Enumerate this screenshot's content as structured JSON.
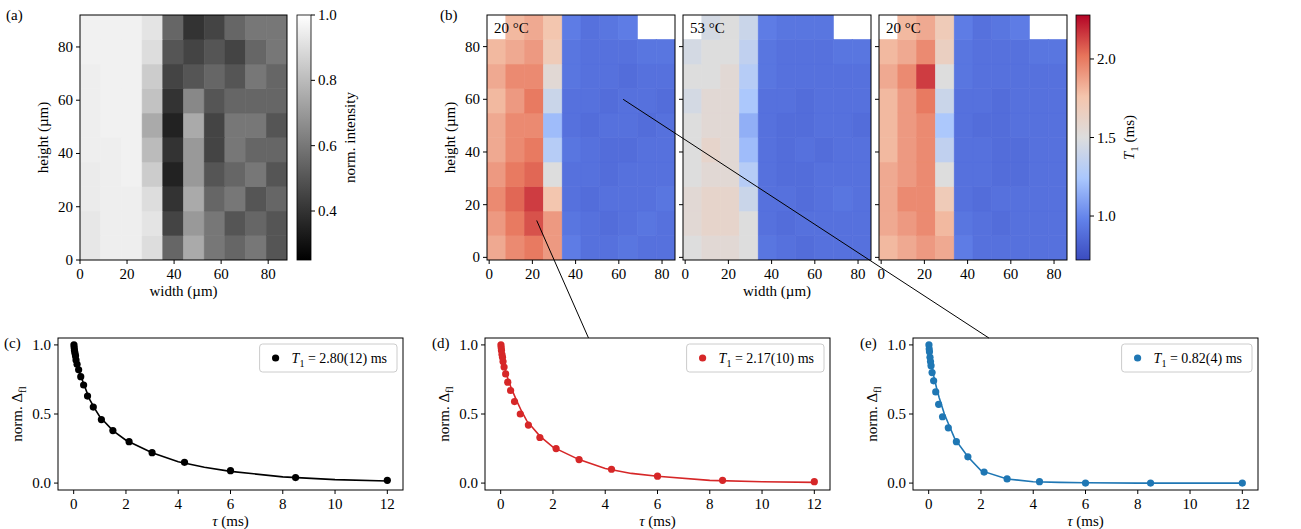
{
  "chart_data": [
    {
      "type": "heatmap",
      "panel_label": "(a)",
      "x_label": "width (µm)",
      "y_label": "height (µm)",
      "xlim": [
        0,
        88
      ],
      "ylim": [
        0,
        92
      ],
      "xticks": [
        0,
        20,
        40,
        60,
        80
      ],
      "yticks": [
        0,
        20,
        40,
        60,
        80
      ],
      "x": [
        4.4,
        13.2,
        22.0,
        30.8,
        39.6,
        48.4,
        57.2,
        66.0,
        74.8,
        83.6
      ],
      "y": [
        4.6,
        13.8,
        23.0,
        32.2,
        41.4,
        50.6,
        59.8,
        69.0,
        78.2,
        87.4
      ],
      "cells": [
        [
          0.93,
          0.95,
          0.95,
          0.9,
          0.55,
          0.75,
          0.6,
          0.55,
          0.6,
          0.5
        ],
        [
          0.93,
          0.95,
          0.95,
          0.92,
          0.45,
          0.7,
          0.6,
          0.5,
          0.55,
          0.5
        ],
        [
          0.94,
          0.95,
          0.95,
          0.9,
          0.4,
          0.75,
          0.55,
          0.6,
          0.5,
          0.55
        ],
        [
          0.94,
          0.95,
          0.96,
          0.85,
          0.35,
          0.7,
          0.5,
          0.55,
          0.6,
          0.5
        ],
        [
          0.95,
          0.95,
          0.96,
          0.8,
          0.4,
          0.7,
          0.45,
          0.6,
          0.55,
          0.55
        ],
        [
          0.95,
          0.96,
          0.96,
          0.75,
          0.35,
          0.75,
          0.45,
          0.6,
          0.6,
          0.5
        ],
        [
          0.95,
          0.96,
          0.96,
          0.82,
          0.4,
          0.65,
          0.5,
          0.55,
          0.55,
          0.55
        ],
        [
          0.95,
          0.96,
          0.96,
          0.85,
          0.45,
          0.5,
          0.55,
          0.5,
          0.6,
          0.55
        ],
        [
          0.96,
          0.96,
          0.96,
          0.9,
          0.5,
          0.45,
          0.5,
          0.45,
          0.55,
          0.6
        ],
        [
          0.96,
          0.96,
          0.96,
          0.92,
          0.55,
          0.4,
          0.45,
          0.55,
          0.6,
          0.6
        ]
      ],
      "colorbar": {
        "label": "norm. intensity",
        "range": [
          0.25,
          1.0
        ],
        "ticks": [
          0.4,
          0.6,
          0.8,
          {
            "value": 1,
            "label": "1.0"
          }
        ],
        "colors": [
          "#000000",
          "#ffffff"
        ]
      }
    },
    {
      "type": "heatmap",
      "panel_label": "(b)",
      "annotation": "20 °C",
      "y_label": "height (µm)",
      "xlim": [
        -1,
        86
      ],
      "ylim": [
        -1,
        92
      ],
      "xticks": [
        0,
        20,
        40,
        60,
        80
      ],
      "yticks": [
        0,
        20,
        40,
        60,
        80
      ],
      "x": [
        3.35,
        12.05,
        20.75,
        29.45,
        38.15,
        46.85,
        55.55,
        64.25,
        72.95,
        81.65
      ],
      "y": [
        3.65,
        12.95,
        22.25,
        31.55,
        40.85,
        50.15,
        59.45,
        68.75,
        78.05,
        87.35
      ],
      "cells": [
        [
          1.85,
          1.95,
          2.0,
          1.9,
          0.95,
          0.9,
          0.9,
          0.92,
          0.9,
          0.9
        ],
        [
          1.9,
          2.0,
          2.1,
          1.9,
          0.92,
          0.9,
          0.88,
          0.9,
          0.92,
          0.9
        ],
        [
          1.95,
          2.05,
          2.15,
          1.75,
          0.9,
          0.88,
          0.9,
          0.9,
          0.9,
          0.92
        ],
        [
          1.9,
          2.0,
          2.05,
          1.5,
          0.9,
          0.9,
          0.88,
          0.9,
          0.9,
          0.9
        ],
        [
          1.85,
          1.95,
          2.0,
          1.3,
          0.92,
          0.9,
          0.88,
          0.88,
          0.9,
          0.9
        ],
        [
          1.85,
          1.95,
          1.95,
          1.2,
          0.9,
          0.88,
          0.9,
          0.9,
          0.88,
          0.9
        ],
        [
          1.8,
          1.9,
          2.0,
          1.4,
          0.9,
          0.9,
          0.88,
          0.9,
          0.9,
          0.88
        ],
        [
          1.85,
          1.95,
          1.95,
          1.55,
          0.92,
          0.9,
          0.9,
          0.88,
          0.9,
          0.9
        ],
        [
          1.8,
          1.85,
          1.9,
          1.7,
          0.92,
          0.9,
          0.9,
          0.9,
          0.92,
          0.92
        ],
        [
          null,
          1.8,
          1.85,
          1.75,
          0.95,
          0.9,
          0.92,
          0.95,
          null,
          null
        ]
      ]
    },
    {
      "type": "heatmap",
      "annotation": "53 °C",
      "x_label": "width (µm)",
      "tick_labels": "x",
      "xlim": [
        -1,
        86
      ],
      "ylim": [
        -1,
        92
      ],
      "xticks": [
        0,
        20,
        40,
        60,
        80
      ],
      "yticks": [
        0,
        20,
        40,
        60,
        80
      ],
      "x": [
        3.35,
        12.05,
        20.75,
        29.45,
        38.15,
        46.85,
        55.55,
        64.25,
        72.95,
        81.65
      ],
      "y": [
        3.65,
        12.95,
        22.25,
        31.55,
        40.85,
        50.15,
        59.45,
        68.75,
        78.05,
        87.35
      ],
      "cells": [
        [
          1.5,
          1.55,
          1.55,
          1.5,
          0.92,
          0.9,
          0.88,
          0.9,
          0.9,
          0.9
        ],
        [
          1.55,
          1.6,
          1.6,
          1.5,
          0.9,
          0.88,
          0.9,
          0.9,
          0.9,
          0.9
        ],
        [
          1.55,
          1.6,
          1.6,
          1.4,
          0.9,
          0.9,
          0.88,
          0.9,
          0.92,
          0.9
        ],
        [
          1.5,
          1.55,
          1.55,
          1.3,
          0.9,
          0.88,
          0.88,
          0.9,
          0.9,
          0.9
        ],
        [
          1.5,
          1.6,
          1.55,
          1.2,
          0.9,
          0.88,
          0.9,
          0.88,
          0.9,
          0.9
        ],
        [
          1.5,
          1.55,
          1.55,
          1.15,
          0.9,
          0.88,
          0.88,
          0.9,
          0.9,
          0.88
        ],
        [
          1.45,
          1.55,
          1.55,
          1.25,
          0.9,
          0.9,
          0.88,
          0.9,
          0.9,
          0.9
        ],
        [
          1.5,
          1.5,
          1.55,
          1.3,
          0.92,
          0.9,
          0.9,
          0.9,
          0.9,
          0.9
        ],
        [
          1.45,
          1.5,
          1.5,
          1.35,
          0.92,
          0.9,
          0.9,
          0.9,
          0.92,
          0.92
        ],
        [
          null,
          1.45,
          1.5,
          1.4,
          0.95,
          0.92,
          0.92,
          0.92,
          null,
          null
        ]
      ]
    },
    {
      "type": "heatmap",
      "annotation": "20 °C",
      "tick_labels": "x",
      "xlim": [
        -1,
        86
      ],
      "ylim": [
        -1,
        92
      ],
      "xticks": [
        0,
        20,
        40,
        60,
        80
      ],
      "yticks": [
        0,
        20,
        40,
        60,
        80
      ],
      "x": [
        3.35,
        12.05,
        20.75,
        29.45,
        38.15,
        46.85,
        55.55,
        64.25,
        72.95,
        81.65
      ],
      "y": [
        3.65,
        12.95,
        22.25,
        31.55,
        40.85,
        50.15,
        59.45,
        68.75,
        78.05,
        87.35
      ],
      "cells": [
        [
          1.8,
          1.85,
          1.9,
          1.85,
          0.95,
          0.9,
          0.9,
          0.9,
          0.9,
          0.9
        ],
        [
          1.85,
          1.9,
          1.95,
          1.8,
          0.92,
          0.9,
          0.88,
          0.9,
          0.9,
          0.9
        ],
        [
          1.85,
          1.95,
          1.95,
          1.7,
          0.9,
          0.88,
          0.9,
          0.9,
          0.9,
          0.9
        ],
        [
          1.85,
          1.9,
          1.95,
          1.5,
          0.9,
          0.9,
          0.88,
          0.88,
          0.9,
          0.9
        ],
        [
          1.8,
          1.9,
          1.95,
          1.35,
          0.9,
          0.9,
          0.88,
          0.88,
          0.9,
          0.9
        ],
        [
          1.8,
          1.9,
          1.95,
          1.25,
          0.9,
          0.88,
          0.88,
          0.9,
          0.9,
          0.9
        ],
        [
          1.8,
          1.9,
          2.0,
          1.4,
          0.9,
          0.9,
          0.88,
          0.9,
          0.9,
          0.9
        ],
        [
          1.85,
          1.95,
          2.15,
          1.5,
          0.92,
          0.9,
          0.9,
          0.9,
          0.9,
          0.9
        ],
        [
          1.8,
          1.85,
          1.95,
          1.65,
          0.92,
          0.9,
          0.9,
          0.9,
          0.92,
          0.92
        ],
        [
          null,
          1.8,
          1.85,
          1.7,
          0.95,
          0.9,
          0.92,
          0.95,
          null,
          null
        ]
      ],
      "colorbar": {
        "label": "T1 (ms)",
        "range": [
          0.72,
          2.28
        ],
        "ticks": [
          {
            "value": 1,
            "label": "1.0"
          },
          1.5,
          {
            "value": 2,
            "label": "2.0"
          }
        ],
        "colors": [
          "#3b4cc0",
          "#6282ea",
          "#aac7fd",
          "#dddddd",
          "#f4c5ad",
          "#e7745b",
          "#b40426"
        ]
      }
    },
    {
      "type": "scatter",
      "panel_label": "(c)",
      "x_label": "τ (ms)",
      "y_label": "norm. Δfl",
      "xlim": [
        -0.6,
        12.6
      ],
      "ylim": [
        -0.05,
        1.05
      ],
      "xticks": [
        0,
        2,
        4,
        6,
        8,
        10,
        12
      ],
      "yticks": [
        {
          "value": 0,
          "label": "0.0"
        },
        0.5,
        {
          "value": 1,
          "label": "1.0"
        }
      ],
      "legend": "upper right",
      "series": [
        {
          "name": "T1 = 2.80(12) ms",
          "type": "scatter",
          "marker": "circle",
          "color": "#000000",
          "x": [
            0.01,
            0.02,
            0.03,
            0.05,
            0.07,
            0.09,
            0.13,
            0.19,
            0.27,
            0.38,
            0.53,
            0.75,
            1.06,
            1.5,
            2.12,
            3.0,
            4.24,
            6.0,
            8.49,
            12.0
          ],
          "values": [
            1.0,
            0.98,
            0.96,
            0.94,
            0.92,
            0.89,
            0.86,
            0.82,
            0.77,
            0.71,
            0.63,
            0.55,
            0.46,
            0.38,
            0.3,
            0.22,
            0.15,
            0.09,
            0.04,
            0.02
          ]
        },
        {
          "type": "line",
          "line_style": "solid",
          "color": "#000000",
          "x": [
            0,
            0.05,
            0.1,
            0.2,
            0.3,
            0.4,
            0.6,
            0.8,
            1,
            1.5,
            2,
            3,
            4,
            5,
            6,
            8,
            10,
            12
          ],
          "values": [
            1.0,
            0.93,
            0.88,
            0.81,
            0.76,
            0.71,
            0.61,
            0.54,
            0.48,
            0.38,
            0.31,
            0.22,
            0.155,
            0.115,
            0.085,
            0.045,
            0.025,
            0.015
          ]
        }
      ]
    },
    {
      "type": "scatter",
      "panel_label": "(d)",
      "x_label": "τ (ms)",
      "y_label": "norm. Δfl",
      "source": [
        22,
        14
      ],
      "xlim": [
        -0.6,
        12.6
      ],
      "ylim": [
        -0.05,
        1.05
      ],
      "xticks": [
        0,
        2,
        4,
        6,
        8,
        10,
        12
      ],
      "yticks": [
        {
          "value": 0,
          "label": "0.0"
        },
        0.5,
        {
          "value": 1,
          "label": "1.0"
        }
      ],
      "legend": "upper right",
      "series": [
        {
          "name": "T1 = 2.17(10) ms",
          "type": "scatter",
          "marker": "circle",
          "color": "#d62728",
          "x": [
            0.01,
            0.02,
            0.03,
            0.05,
            0.07,
            0.09,
            0.13,
            0.19,
            0.27,
            0.38,
            0.53,
            0.75,
            1.06,
            1.5,
            2.12,
            3.0,
            4.24,
            6.0,
            8.49,
            12.0
          ],
          "values": [
            1.0,
            0.98,
            0.96,
            0.93,
            0.91,
            0.88,
            0.84,
            0.79,
            0.73,
            0.67,
            0.59,
            0.5,
            0.42,
            0.33,
            0.25,
            0.17,
            0.1,
            0.05,
            0.02,
            0.01
          ]
        },
        {
          "type": "line",
          "line_style": "solid",
          "color": "#d62728",
          "x": [
            0,
            0.05,
            0.1,
            0.2,
            0.3,
            0.4,
            0.6,
            0.8,
            1,
            1.5,
            2,
            3,
            4,
            5,
            6,
            8,
            10,
            12
          ],
          "values": [
            1.0,
            0.93,
            0.88,
            0.8,
            0.74,
            0.69,
            0.6,
            0.52,
            0.45,
            0.34,
            0.26,
            0.17,
            0.105,
            0.07,
            0.05,
            0.02,
            0.01,
            0.005
          ]
        }
      ]
    },
    {
      "type": "scatter",
      "panel_label": "(e)",
      "x_label": "τ (ms)",
      "y_label": "norm. Δfl",
      "source": [
        62,
        60
      ],
      "xlim": [
        -0.6,
        12.6
      ],
      "ylim": [
        -0.05,
        1.05
      ],
      "xticks": [
        0,
        2,
        4,
        6,
        8,
        10,
        12
      ],
      "yticks": [
        {
          "value": 0,
          "label": "0.0"
        },
        0.5,
        {
          "value": 1,
          "label": "1.0"
        }
      ],
      "legend": "upper right",
      "series": [
        {
          "name": "T1 = 0.82(4) ms",
          "type": "scatter",
          "marker": "circle",
          "color": "#1f77b4",
          "x": [
            0.01,
            0.02,
            0.03,
            0.05,
            0.07,
            0.09,
            0.13,
            0.19,
            0.27,
            0.38,
            0.53,
            0.75,
            1.06,
            1.5,
            2.12,
            3.0,
            4.24,
            6.0,
            8.49,
            12.0
          ],
          "values": [
            1.0,
            0.97,
            0.95,
            0.91,
            0.88,
            0.85,
            0.8,
            0.74,
            0.66,
            0.57,
            0.48,
            0.4,
            0.3,
            0.19,
            0.08,
            0.03,
            0.01,
            0.0,
            0.0,
            0.0
          ]
        },
        {
          "type": "line",
          "line_style": "solid",
          "color": "#1f77b4",
          "x": [
            0,
            0.05,
            0.1,
            0.2,
            0.3,
            0.4,
            0.6,
            0.8,
            1,
            1.5,
            2,
            3,
            4,
            5,
            6,
            8,
            10,
            12
          ],
          "values": [
            1.0,
            0.93,
            0.87,
            0.77,
            0.69,
            0.62,
            0.5,
            0.41,
            0.32,
            0.19,
            0.09,
            0.03,
            0.01,
            0.005,
            0.002,
            0.0,
            0.0,
            0.0
          ]
        }
      ]
    }
  ]
}
